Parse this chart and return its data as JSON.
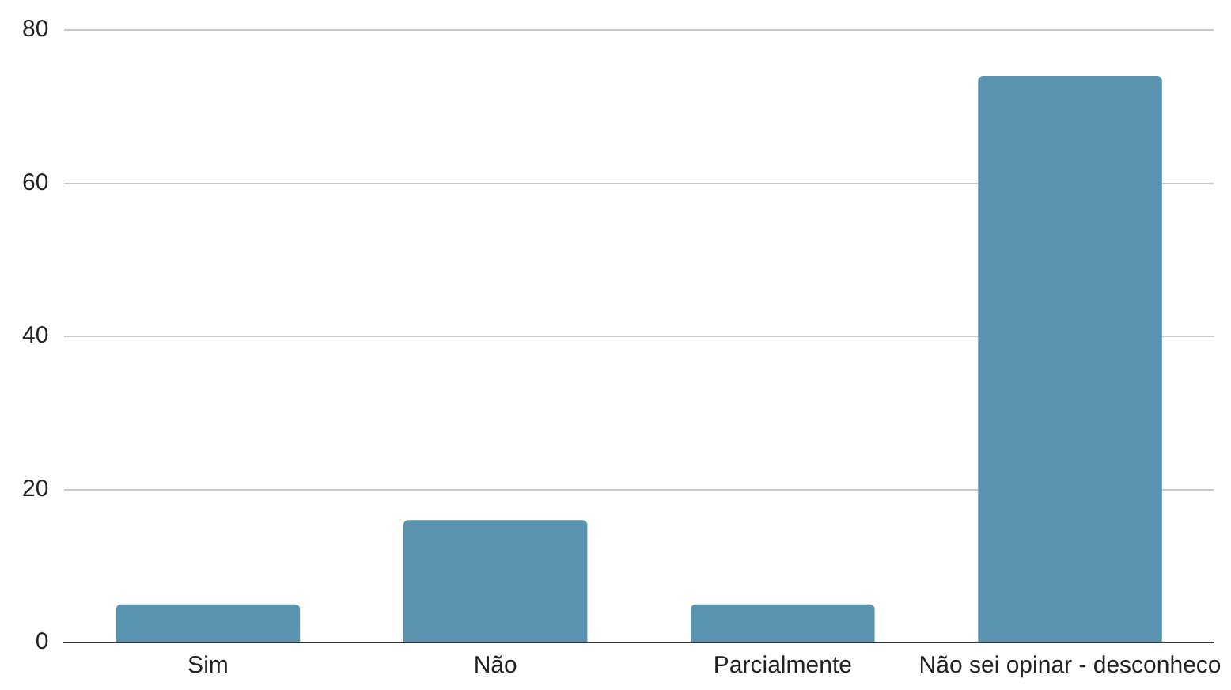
{
  "chart_data": {
    "type": "bar",
    "categories": [
      "Sim",
      "Não",
      "Parcialmente",
      "Não sei opinar - desconheco"
    ],
    "values": [
      5,
      16,
      5,
      74
    ],
    "color": "#5a93b0",
    "ylim": [
      0,
      80
    ],
    "yticks": [
      0,
      20,
      40,
      60,
      80
    ],
    "grid": "y"
  }
}
